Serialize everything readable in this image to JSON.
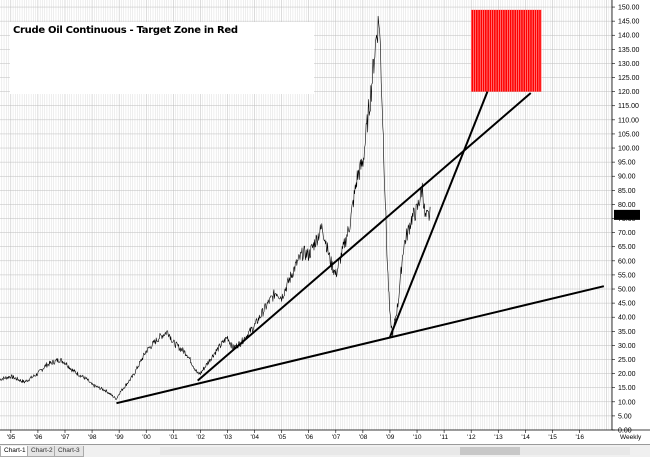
{
  "title": "Crude Oil Continuous - Target Zone in Red",
  "tabs": [
    "Chart-1",
    "Chart-2",
    "Chart-3"
  ],
  "chart_data": {
    "type": "line",
    "title": "Crude Oil Continuous - Target Zone in Red",
    "xlabel": "Weekly",
    "ylabel": "",
    "x_tick_labels": [
      "'95",
      "'96",
      "'97",
      "'98",
      "'99",
      "'00",
      "'01",
      "'02",
      "'03",
      "'04",
      "'05",
      "'06",
      "'07",
      "'08",
      "'09",
      "'10",
      "'11",
      "'12",
      "'13",
      "'14",
      "'15",
      "'16"
    ],
    "x_ticks": [
      1995,
      1996,
      1997,
      1998,
      1999,
      2000,
      2001,
      2002,
      2003,
      2004,
      2005,
      2006,
      2007,
      2008,
      2009,
      2010,
      2011,
      2012,
      2013,
      2014,
      2015,
      2016
    ],
    "xlim": [
      1994.6,
      2017.2
    ],
    "ylim": [
      0,
      152.5
    ],
    "y_ticks": [
      0,
      5,
      10,
      15,
      20,
      25,
      30,
      35,
      40,
      45,
      50,
      55,
      60,
      65,
      70,
      75,
      80,
      85,
      90,
      95,
      100,
      105,
      110,
      115,
      120,
      125,
      130,
      135,
      140,
      145,
      150
    ],
    "y_tick_labels": [
      "0.00",
      "5.00",
      "10.00",
      "15.00",
      "20.00",
      "25.00",
      "30.00",
      "35.00",
      "40.00",
      "45.00",
      "50.00",
      "55.00",
      "60.00",
      "65.00",
      "70.00",
      "75.00",
      "80.00",
      "85.00",
      "90.00",
      "95.00",
      "100.00",
      "105.00",
      "110.00",
      "115.00",
      "120.00",
      "125.00",
      "130.00",
      "135.00",
      "140.00",
      "145.00",
      "150.00"
    ],
    "last_value_label": "76.29",
    "last_value": 76.29,
    "grid": true,
    "series": [
      {
        "x": [
          1994.6,
          1995.0,
          1995.5,
          1996.0,
          1996.3,
          1996.8,
          1997.0,
          1997.3,
          1997.8,
          1998.0,
          1998.5,
          1998.9,
          1999.0,
          1999.5,
          2000.0,
          2000.5,
          2000.8,
          2001.0,
          2001.5,
          2001.9,
          2002.0,
          2002.5,
          2003.0,
          2003.2,
          2003.5,
          2004.0,
          2004.5,
          2004.8,
          2005.0,
          2005.5,
          2005.8,
          2006.0,
          2006.5,
          2006.8,
          2007.0,
          2007.5,
          2007.8,
          2008.0,
          2008.3,
          2008.5,
          2008.6,
          2008.7,
          2008.9,
          2009.0,
          2009.1,
          2009.3,
          2009.5,
          2009.8,
          2010.0,
          2010.2,
          2010.3,
          2010.5
        ],
        "y": [
          18,
          19,
          17,
          20,
          23,
          25,
          24,
          21,
          18,
          16,
          14,
          11,
          13,
          19,
          28,
          33,
          35,
          31,
          27,
          20,
          20,
          27,
          33,
          29,
          31,
          37,
          45,
          49,
          47,
          58,
          63,
          62,
          72,
          60,
          55,
          72,
          90,
          95,
          120,
          140,
          146,
          120,
          60,
          40,
          34,
          45,
          65,
          75,
          78,
          86,
          75,
          76.29
        ]
      }
    ],
    "trendlines": [
      {
        "x": [
          1998.9,
          2016.9
        ],
        "y": [
          9.5,
          51
        ]
      },
      {
        "x": [
          2001.9,
          2014.2
        ],
        "y": [
          17.5,
          119.5
        ]
      },
      {
        "x": [
          2009.0,
          2012.6
        ],
        "y": [
          33,
          120
        ]
      }
    ],
    "target_zone": {
      "x": [
        2012.0,
        2014.6
      ],
      "y": [
        120,
        149
      ],
      "color": "#ff0000"
    }
  }
}
